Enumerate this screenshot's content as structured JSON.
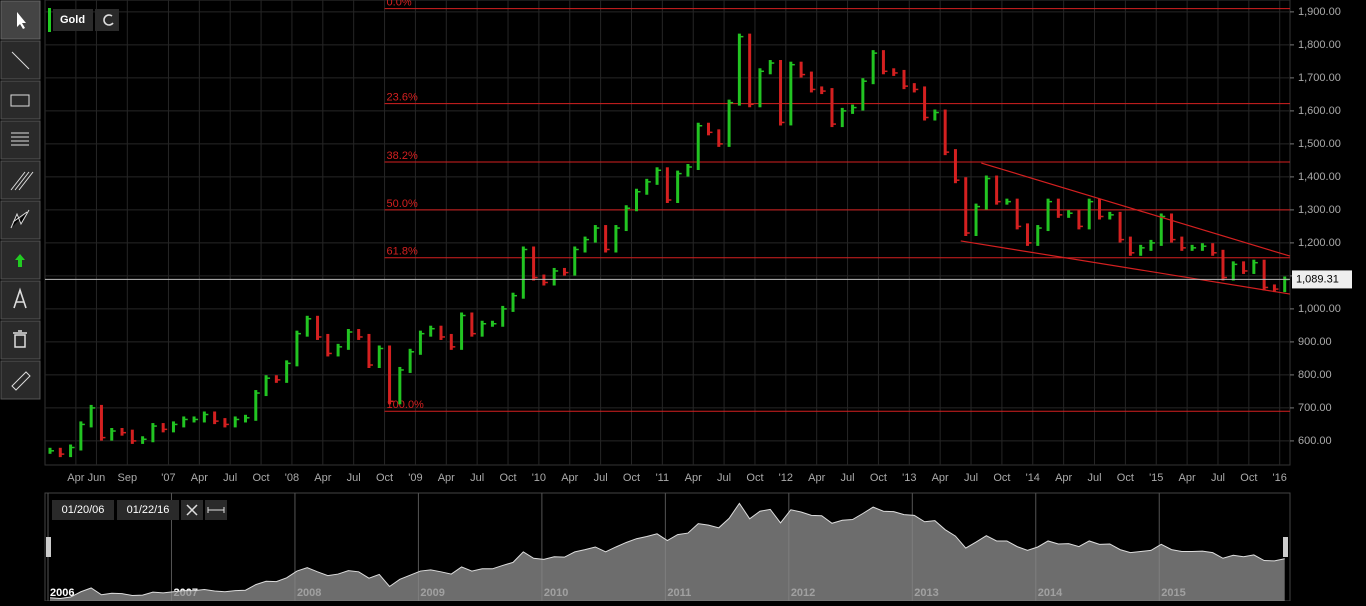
{
  "chart_data": {
    "type": "bar-line",
    "title": "Gold",
    "xlim": [
      "2006-01",
      "2016-02"
    ],
    "ylim": [
      527,
      1936
    ],
    "yticks": [
      {
        "value": 600,
        "label": "600.00"
      },
      {
        "value": 700,
        "label": "700.00"
      },
      {
        "value": 800,
        "label": "800.00"
      },
      {
        "value": 900,
        "label": "900.00"
      },
      {
        "value": 1000,
        "label": "1,000.00"
      },
      {
        "value": 1100,
        "label": "1,100.00"
      },
      {
        "value": 1200,
        "label": "1,200.00"
      },
      {
        "value": 1300,
        "label": "1,300.00"
      },
      {
        "value": 1400,
        "label": "1,400.00"
      },
      {
        "value": 1500,
        "label": "1,500.00"
      },
      {
        "value": 1600,
        "label": "1,600.00"
      },
      {
        "value": 1700,
        "label": "1,700.00"
      },
      {
        "value": 1800,
        "label": "1,800.00"
      },
      {
        "value": 1900,
        "label": "1,900.00"
      }
    ],
    "xticks": [
      {
        "value": "2006-04",
        "label": "Apr"
      },
      {
        "value": "2006-06",
        "label": "Jun"
      },
      {
        "value": "2006-09",
        "label": "Sep"
      },
      {
        "value": "2007-01",
        "label": "'07"
      },
      {
        "value": "2007-04",
        "label": "Apr"
      },
      {
        "value": "2007-07",
        "label": "Jul"
      },
      {
        "value": "2007-10",
        "label": "Oct"
      },
      {
        "value": "2008-01",
        "label": "'08"
      },
      {
        "value": "2008-04",
        "label": "Apr"
      },
      {
        "value": "2008-07",
        "label": "Jul"
      },
      {
        "value": "2008-10",
        "label": "Oct"
      },
      {
        "value": "2009-01",
        "label": "'09"
      },
      {
        "value": "2009-04",
        "label": "Apr"
      },
      {
        "value": "2009-07",
        "label": "Jul"
      },
      {
        "value": "2009-10",
        "label": "Oct"
      },
      {
        "value": "2010-01",
        "label": "'10"
      },
      {
        "value": "2010-04",
        "label": "Apr"
      },
      {
        "value": "2010-07",
        "label": "Jul"
      },
      {
        "value": "2010-10",
        "label": "Oct"
      },
      {
        "value": "2011-01",
        "label": "'11"
      },
      {
        "value": "2011-04",
        "label": "Apr"
      },
      {
        "value": "2011-07",
        "label": "Jul"
      },
      {
        "value": "2011-10",
        "label": "Oct"
      },
      {
        "value": "2012-01",
        "label": "'12"
      },
      {
        "value": "2012-04",
        "label": "Apr"
      },
      {
        "value": "2012-07",
        "label": "Jul"
      },
      {
        "value": "2012-10",
        "label": "Oct"
      },
      {
        "value": "2013-01",
        "label": "'13"
      },
      {
        "value": "2013-04",
        "label": "Apr"
      },
      {
        "value": "2013-07",
        "label": "Jul"
      },
      {
        "value": "2013-10",
        "label": "Oct"
      },
      {
        "value": "2014-01",
        "label": "'14"
      },
      {
        "value": "2014-04",
        "label": "Apr"
      },
      {
        "value": "2014-07",
        "label": "Jul"
      },
      {
        "value": "2014-10",
        "label": "Oct"
      },
      {
        "value": "2015-01",
        "label": "'15"
      },
      {
        "value": "2015-04",
        "label": "Apr"
      },
      {
        "value": "2015-07",
        "label": "Jul"
      },
      {
        "value": "2015-10",
        "label": "Oct"
      },
      {
        "value": "2016-01",
        "label": "'16"
      }
    ],
    "x": [
      "2006-01",
      "2006-02",
      "2006-03",
      "2006-04",
      "2006-05",
      "2006-06",
      "2006-07",
      "2006-08",
      "2006-09",
      "2006-10",
      "2006-11",
      "2006-12",
      "2007-01",
      "2007-02",
      "2007-03",
      "2007-04",
      "2007-05",
      "2007-06",
      "2007-07",
      "2007-08",
      "2007-09",
      "2007-10",
      "2007-11",
      "2007-12",
      "2008-01",
      "2008-02",
      "2008-03",
      "2008-04",
      "2008-05",
      "2008-06",
      "2008-07",
      "2008-08",
      "2008-09",
      "2008-10",
      "2008-11",
      "2008-12",
      "2009-01",
      "2009-02",
      "2009-03",
      "2009-04",
      "2009-05",
      "2009-06",
      "2009-07",
      "2009-08",
      "2009-09",
      "2009-10",
      "2009-11",
      "2009-12",
      "2010-01",
      "2010-02",
      "2010-03",
      "2010-04",
      "2010-05",
      "2010-06",
      "2010-07",
      "2010-08",
      "2010-09",
      "2010-10",
      "2010-11",
      "2010-12",
      "2011-01",
      "2011-02",
      "2011-03",
      "2011-04",
      "2011-05",
      "2011-06",
      "2011-07",
      "2011-08",
      "2011-09",
      "2011-10",
      "2011-11",
      "2011-12",
      "2012-01",
      "2012-02",
      "2012-03",
      "2012-04",
      "2012-05",
      "2012-06",
      "2012-07",
      "2012-08",
      "2012-09",
      "2012-10",
      "2012-11",
      "2012-12",
      "2013-01",
      "2013-02",
      "2013-03",
      "2013-04",
      "2013-05",
      "2013-06",
      "2013-07",
      "2013-08",
      "2013-09",
      "2013-10",
      "2013-11",
      "2013-12",
      "2014-01",
      "2014-02",
      "2014-03",
      "2014-04",
      "2014-05",
      "2014-06",
      "2014-07",
      "2014-08",
      "2014-09",
      "2014-10",
      "2014-11",
      "2014-12",
      "2015-01",
      "2015-02",
      "2015-03",
      "2015-04",
      "2015-05",
      "2015-06",
      "2015-07",
      "2015-08",
      "2015-09",
      "2015-10",
      "2015-11",
      "2015-12",
      "2016-01"
    ],
    "values": [
      570,
      560,
      580,
      650,
      700,
      610,
      630,
      625,
      600,
      605,
      645,
      635,
      650,
      665,
      665,
      680,
      660,
      650,
      665,
      670,
      745,
      790,
      785,
      835,
      925,
      970,
      915,
      865,
      885,
      930,
      915,
      830,
      880,
      720,
      815,
      870,
      925,
      940,
      915,
      885,
      980,
      925,
      955,
      955,
      1000,
      1040,
      1180,
      1095,
      1080,
      1115,
      1110,
      1180,
      1210,
      1245,
      1180,
      1245,
      1305,
      1355,
      1385,
      1420,
      1330,
      1410,
      1430,
      1555,
      1535,
      1500,
      1625,
      1825,
      1620,
      1720,
      1745,
      1565,
      1740,
      1710,
      1665,
      1660,
      1560,
      1600,
      1610,
      1690,
      1775,
      1720,
      1715,
      1675,
      1665,
      1580,
      1595,
      1475,
      1390,
      1230,
      1310,
      1395,
      1325,
      1325,
      1250,
      1200,
      1245,
      1325,
      1285,
      1290,
      1250,
      1325,
      1280,
      1285,
      1210,
      1170,
      1185,
      1200,
      1280,
      1210,
      1185,
      1185,
      1190,
      1170,
      1095,
      1135,
      1115,
      1140,
      1065,
      1060,
      1089
    ],
    "up_color": "#22c422",
    "down_color": "#d42020",
    "grid": true,
    "fib_start": "2008-10",
    "fib_levels": [
      {
        "value": 1910,
        "label": "0.0%"
      },
      {
        "value": 1622,
        "label": "23.6%"
      },
      {
        "value": 1445,
        "label": "38.2%"
      },
      {
        "value": 1300,
        "label": "50.0%"
      },
      {
        "value": 1155,
        "label": "61.8%"
      },
      {
        "value": 690,
        "label": "100.0%"
      }
    ],
    "fib_color": "#d42020",
    "trendlines": [
      {
        "x": [
          "2013-08",
          "2016-02"
        ],
        "y": [
          1442,
          1160
        ]
      },
      {
        "x": [
          "2013-06",
          "2016-02"
        ],
        "y": [
          1206,
          1045
        ]
      }
    ],
    "last_price": {
      "value": 1089.31,
      "label": "1,089.31"
    },
    "navigator": {
      "from": "01/20/06",
      "to": "01/22/16",
      "years": [
        "2006",
        "2007",
        "2008",
        "2009",
        "2010",
        "2011",
        "2012",
        "2013",
        "2014",
        "2015"
      ]
    }
  }
}
